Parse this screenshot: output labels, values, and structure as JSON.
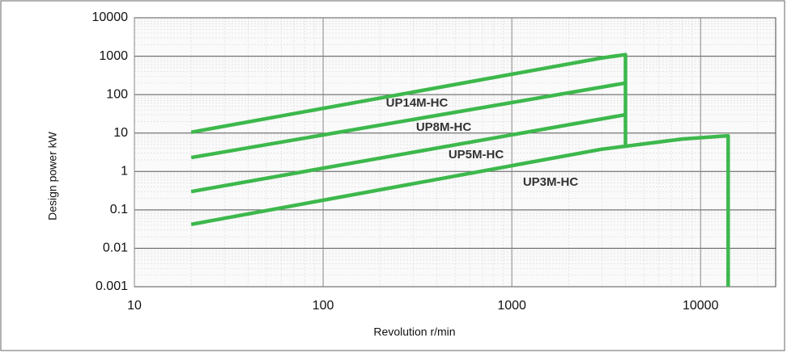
{
  "chart_data": {
    "type": "line",
    "x_label": "Revolution r/min",
    "y_label": "Design power  kW",
    "xlim": [
      10,
      25000
    ],
    "ylim": [
      0.001,
      10000
    ],
    "xticks": [
      10,
      100,
      1000,
      10000
    ],
    "yticks": [
      0.001,
      0.01,
      0.1,
      1,
      10,
      100,
      1000,
      10000
    ],
    "log_x": true,
    "log_y": true,
    "grid": true,
    "minor_grid": true,
    "series": [
      {
        "name": "UP14M-HC",
        "color": "#3db84c",
        "x": [
          20,
          3000,
          4000,
          4000
        ],
        "values": [
          10.5,
          900,
          1100,
          4.8
        ]
      },
      {
        "name": "UP8M-HC",
        "color": "#3db84c",
        "x": [
          20,
          4000
        ],
        "values": [
          2.3,
          200
        ]
      },
      {
        "name": "UP5M-HC",
        "color": "#3db84c",
        "x": [
          20,
          4000
        ],
        "values": [
          0.3,
          30
        ]
      },
      {
        "name": "UP3M-HC",
        "color": "#3db84c",
        "x": [
          20,
          3000,
          8000,
          14000,
          14000
        ],
        "values": [
          0.042,
          3.8,
          7,
          8.5,
          0.001
        ]
      }
    ]
  }
}
